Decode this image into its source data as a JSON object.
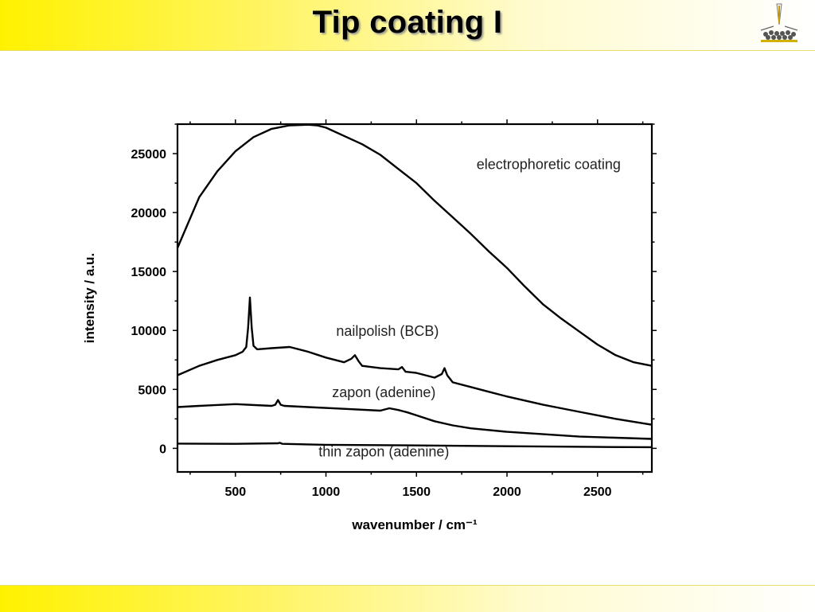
{
  "slide": {
    "title": "Tip coating I",
    "logo_icon": "stm-tip-logo",
    "colors": {
      "banner_start": "#fff200",
      "banner_end": "#ffffff"
    }
  },
  "chart_data": {
    "type": "line",
    "xlabel": "wavenumber / cm⁻¹",
    "ylabel": "intensity / a.u.",
    "xlim": [
      180,
      2800
    ],
    "ylim": [
      -2000,
      27500
    ],
    "x_ticks": [
      500,
      1000,
      1500,
      2000,
      2500
    ],
    "y_ticks": [
      0,
      5000,
      10000,
      15000,
      20000,
      25000
    ],
    "grid": false,
    "legend": "labels placed next to each curve",
    "series": [
      {
        "name": "electrophoretic coating",
        "x": [
          180,
          300,
          400,
          500,
          600,
          700,
          800,
          900,
          950,
          1000,
          1100,
          1200,
          1300,
          1400,
          1500,
          1600,
          1700,
          1800,
          1900,
          2000,
          2100,
          2200,
          2300,
          2400,
          2500,
          2600,
          2700,
          2800
        ],
        "y": [
          17000,
          21300,
          23500,
          25200,
          26400,
          27100,
          27400,
          27450,
          27400,
          27200,
          26500,
          25800,
          24900,
          23700,
          22500,
          21000,
          19600,
          18200,
          16700,
          15300,
          13700,
          12200,
          11000,
          9900,
          8800,
          7900,
          7300,
          7000
        ]
      },
      {
        "name": "nailpolish (BCB)",
        "x": [
          180,
          300,
          400,
          500,
          540,
          560,
          570,
          580,
          590,
          600,
          620,
          700,
          800,
          900,
          1000,
          1100,
          1140,
          1160,
          1180,
          1200,
          1300,
          1400,
          1420,
          1440,
          1500,
          1600,
          1640,
          1655,
          1670,
          1700,
          1800,
          1900,
          2000,
          2200,
          2400,
          2600,
          2800
        ],
        "y": [
          6200,
          7000,
          7500,
          7900,
          8200,
          8600,
          10200,
          12800,
          10200,
          8700,
          8400,
          8500,
          8600,
          8200,
          7700,
          7300,
          7600,
          7900,
          7400,
          7000,
          6800,
          6700,
          6900,
          6500,
          6400,
          6000,
          6300,
          6800,
          6200,
          5600,
          5200,
          4800,
          4400,
          3700,
          3100,
          2500,
          2000
        ]
      },
      {
        "name": "zapon (adenine)",
        "x": [
          180,
          300,
          500,
          700,
          720,
          735,
          750,
          770,
          900,
          1100,
          1300,
          1350,
          1400,
          1450,
          1500,
          1600,
          1700,
          1800,
          2000,
          2200,
          2400,
          2600,
          2800
        ],
        "y": [
          3500,
          3600,
          3750,
          3600,
          3700,
          4100,
          3700,
          3600,
          3500,
          3350,
          3200,
          3400,
          3250,
          3050,
          2800,
          2300,
          1950,
          1700,
          1400,
          1200,
          1000,
          900,
          800
        ]
      },
      {
        "name": "thin zapon (adenine)",
        "x": [
          180,
          500,
          735,
          745,
          760,
          1000,
          1500,
          2000,
          2500,
          2800
        ],
        "y": [
          400,
          380,
          430,
          470,
          380,
          300,
          250,
          180,
          120,
          100
        ]
      }
    ]
  }
}
